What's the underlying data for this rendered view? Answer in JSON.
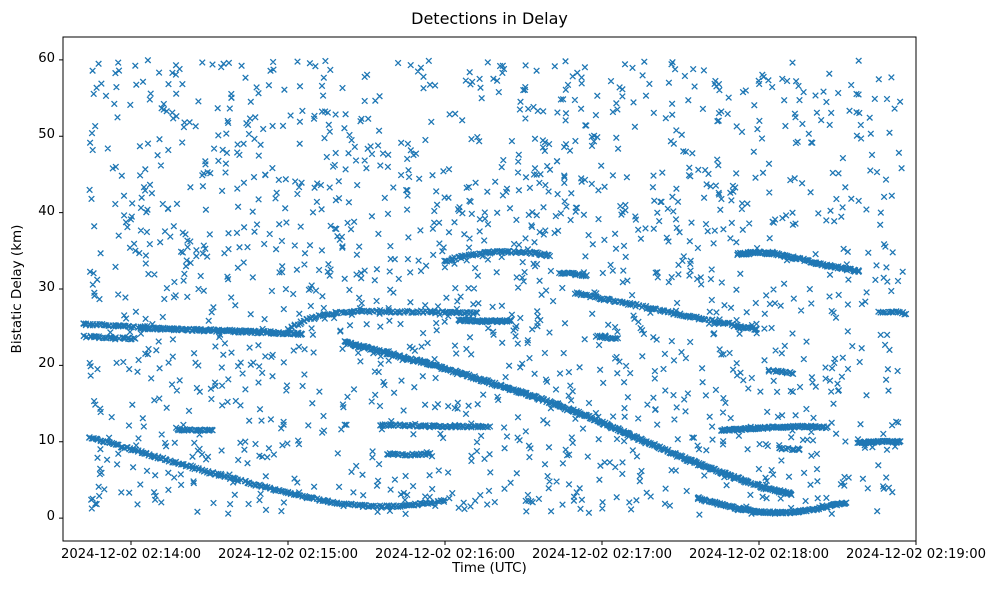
{
  "chart_data": {
    "type": "scatter",
    "title": "Detections in Delay",
    "xlabel": "Time (UTC)",
    "ylabel": "Bistatic Delay (km)",
    "marker": {
      "symbol": "x",
      "color": "#1f77b4",
      "size": 5.6,
      "stroke_width": 1.3
    },
    "x_axis": {
      "origin": "2024-12-02 02:13:34",
      "range_seconds": [
        0,
        326
      ],
      "ticks": [
        {
          "t": 26,
          "label": "2024-12-02 02:14:00"
        },
        {
          "t": 86,
          "label": "2024-12-02 02:15:00"
        },
        {
          "t": 146,
          "label": "2024-12-02 02:16:00"
        },
        {
          "t": 206,
          "label": "2024-12-02 02:17:00"
        },
        {
          "t": 266,
          "label": "2024-12-02 02:18:00"
        },
        {
          "t": 326,
          "label": "2024-12-02 02:19:00"
        }
      ]
    },
    "y_axis": {
      "range": [
        -3,
        63
      ],
      "ticks": [
        0,
        10,
        20,
        30,
        40,
        50,
        60
      ]
    },
    "tracks": [
      {
        "name": "left-band-upper",
        "strands": 2,
        "step": 1.2,
        "jitter": 0.14,
        "points": [
          [
            8,
            25.4
          ],
          [
            20,
            25.2
          ],
          [
            33,
            25.0
          ]
        ]
      },
      {
        "name": "left-band-lower",
        "strands": 2,
        "step": 1.2,
        "jitter": 0.12,
        "points": [
          [
            8,
            23.8
          ],
          [
            18,
            23.6
          ],
          [
            28,
            23.5
          ]
        ]
      },
      {
        "name": "left-band-main",
        "strands": 3,
        "step": 1.2,
        "jitter": 0.16,
        "points": [
          [
            30,
            24.9
          ],
          [
            55,
            24.6
          ],
          [
            80,
            24.3
          ],
          [
            92,
            24.1
          ]
        ]
      },
      {
        "name": "bump-27-band",
        "strands": 2,
        "step": 1.2,
        "jitter": 0.15,
        "points": [
          [
            86,
            24.8
          ],
          [
            92,
            25.8
          ],
          [
            98,
            26.5
          ],
          [
            106,
            27.0
          ],
          [
            120,
            27.1
          ],
          [
            140,
            27.0
          ],
          [
            158,
            26.8
          ]
        ]
      },
      {
        "name": "band-26",
        "strands": 3,
        "step": 1.0,
        "jitter": 0.14,
        "points": [
          [
            151,
            25.9
          ],
          [
            160,
            25.8
          ],
          [
            171,
            25.8
          ]
        ]
      },
      {
        "name": "main-descending",
        "strands": 3,
        "step": 1.0,
        "jitter": 0.18,
        "points": [
          [
            108,
            23.0
          ],
          [
            125,
            21.5
          ],
          [
            142,
            20.0
          ],
          [
            158,
            18.3
          ],
          [
            172,
            16.8
          ],
          [
            186,
            15.2
          ],
          [
            200,
            13.4
          ],
          [
            214,
            11.3
          ],
          [
            228,
            9.2
          ],
          [
            242,
            7.2
          ],
          [
            256,
            5.4
          ],
          [
            268,
            4.0
          ],
          [
            278,
            3.2
          ]
        ]
      },
      {
        "name": "band-12-mid",
        "strands": 2,
        "step": 1.1,
        "jitter": 0.13,
        "points": [
          [
            121,
            12.2
          ],
          [
            135,
            12.1
          ],
          [
            150,
            12.0
          ],
          [
            163,
            12.0
          ]
        ]
      },
      {
        "name": "band-8",
        "strands": 2,
        "step": 1.1,
        "jitter": 0.12,
        "points": [
          [
            124,
            8.4
          ],
          [
            132,
            8.3
          ],
          [
            140,
            8.4
          ]
        ]
      },
      {
        "name": "arc-35",
        "strands": 2,
        "step": 1.0,
        "jitter": 0.15,
        "points": [
          [
            146,
            33.6
          ],
          [
            152,
            34.2
          ],
          [
            160,
            34.7
          ],
          [
            170,
            34.9
          ],
          [
            178,
            34.8
          ],
          [
            186,
            34.4
          ]
        ]
      },
      {
        "name": "cluster-32",
        "strands": 2,
        "step": 1.0,
        "jitter": 0.15,
        "points": [
          [
            190,
            32.1
          ],
          [
            200,
            31.8
          ]
        ]
      },
      {
        "name": "chain-29-24",
        "strands": 2,
        "step": 1.1,
        "jitter": 0.16,
        "points": [
          [
            196,
            29.4
          ],
          [
            208,
            28.6
          ],
          [
            220,
            27.8
          ],
          [
            232,
            26.9
          ],
          [
            244,
            26.1
          ],
          [
            256,
            25.3
          ],
          [
            266,
            24.6
          ]
        ]
      },
      {
        "name": "right-arc-34",
        "strands": 3,
        "step": 1.0,
        "jitter": 0.15,
        "points": [
          [
            258,
            34.6
          ],
          [
            266,
            34.8
          ],
          [
            274,
            34.5
          ],
          [
            282,
            33.9
          ],
          [
            290,
            33.2
          ],
          [
            298,
            32.7
          ],
          [
            304,
            32.3
          ]
        ]
      },
      {
        "name": "bottom-right-curve",
        "strands": 3,
        "step": 1.0,
        "jitter": 0.13,
        "points": [
          [
            243,
            2.6
          ],
          [
            251,
            1.8
          ],
          [
            259,
            1.2
          ],
          [
            267,
            0.8
          ],
          [
            275,
            0.7
          ],
          [
            283,
            0.9
          ],
          [
            291,
            1.4
          ],
          [
            299,
            2.0
          ]
        ]
      },
      {
        "name": "right-band-12",
        "strands": 3,
        "step": 1.0,
        "jitter": 0.13,
        "points": [
          [
            252,
            11.5
          ],
          [
            262,
            11.7
          ],
          [
            272,
            11.9
          ],
          [
            284,
            12.0
          ],
          [
            292,
            11.9
          ]
        ]
      },
      {
        "name": "right-band-10",
        "strands": 3,
        "step": 1.0,
        "jitter": 0.12,
        "points": [
          [
            304,
            9.9
          ],
          [
            312,
            10.0
          ],
          [
            320,
            10.0
          ]
        ]
      },
      {
        "name": "right-band-9",
        "strands": 2,
        "step": 1.1,
        "jitter": 0.12,
        "points": [
          [
            274,
            9.1
          ],
          [
            282,
            9.0
          ]
        ]
      },
      {
        "name": "right-band-19",
        "strands": 2,
        "step": 1.1,
        "jitter": 0.13,
        "points": [
          [
            270,
            19.3
          ],
          [
            279,
            19.0
          ]
        ]
      },
      {
        "name": "right-edge-27",
        "strands": 2,
        "step": 1.1,
        "jitter": 0.13,
        "points": [
          [
            312,
            26.9
          ],
          [
            318,
            27.0
          ],
          [
            322,
            26.8
          ]
        ]
      },
      {
        "name": "bottom-left-curve",
        "strands": 2,
        "step": 1.1,
        "jitter": 0.14,
        "points": [
          [
            10,
            10.6
          ],
          [
            22,
            9.4
          ],
          [
            34,
            8.2
          ],
          [
            46,
            7.0
          ],
          [
            58,
            5.8
          ],
          [
            70,
            4.7
          ],
          [
            80,
            3.8
          ],
          [
            90,
            3.0
          ],
          [
            98,
            2.4
          ],
          [
            106,
            1.9
          ],
          [
            114,
            1.6
          ],
          [
            122,
            1.5
          ],
          [
            130,
            1.6
          ],
          [
            138,
            1.9
          ],
          [
            146,
            2.3
          ]
        ]
      },
      {
        "name": "left-band-11",
        "strands": 2,
        "step": 1.1,
        "jitter": 0.12,
        "points": [
          [
            44,
            11.6
          ],
          [
            50,
            11.5
          ],
          [
            58,
            11.6
          ]
        ]
      },
      {
        "name": "cluster-24-mid",
        "strands": 2,
        "step": 1.1,
        "jitter": 0.14,
        "points": [
          [
            204,
            23.8
          ],
          [
            212,
            23.5
          ]
        ]
      }
    ],
    "clutter": {
      "count": 1600,
      "t_range": [
        10,
        321
      ],
      "y_range": [
        0.4,
        60.0
      ],
      "seed": 7,
      "jitter_seed": 99
    }
  }
}
